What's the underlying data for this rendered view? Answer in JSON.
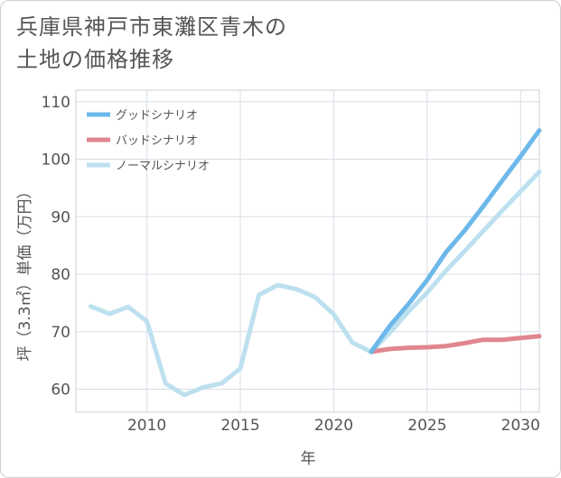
{
  "title": "兵庫県神戸市東灘区青木の\n土地の価格推移",
  "chart_data": {
    "type": "line",
    "xlabel": "年",
    "ylabel": "坪（3.3㎡）単価（万円）",
    "xlim": [
      2006.2,
      2031
    ],
    "ylim": [
      56,
      112
    ],
    "x_ticks": [
      2010,
      2015,
      2020,
      2025,
      2030
    ],
    "y_ticks": [
      60,
      70,
      80,
      90,
      100,
      110
    ],
    "grid": true,
    "legend_position": "top-left",
    "series": [
      {
        "name": "グッドシナリオ",
        "color": "#6db8ea",
        "x": [
          2022,
          2023,
          2024,
          2025,
          2026,
          2027,
          2028,
          2029,
          2030,
          2031
        ],
        "y": [
          66.5,
          71.0,
          74.8,
          79.0,
          83.8,
          87.6,
          91.8,
          96.2,
          100.5,
          105.0
        ]
      },
      {
        "name": "バッドシナリオ",
        "color": "#e0868f",
        "x": [
          2022,
          2023,
          2024,
          2025,
          2026,
          2027,
          2028,
          2029,
          2030,
          2031
        ],
        "y": [
          66.5,
          67.0,
          67.2,
          67.3,
          67.5,
          68.0,
          68.6,
          68.6,
          68.9,
          69.2
        ]
      },
      {
        "name": "ノーマルシナリオ",
        "color": "#bde0ef",
        "x": [
          2007,
          2008,
          2009,
          2010,
          2011,
          2012,
          2013,
          2014,
          2015,
          2016,
          2017,
          2018,
          2019,
          2020,
          2021,
          2022,
          2023,
          2024,
          2025,
          2026,
          2027,
          2028,
          2029,
          2030,
          2031
        ],
        "y": [
          74.4,
          73.1,
          74.3,
          71.8,
          61.0,
          59.0,
          60.3,
          61.0,
          63.6,
          76.4,
          78.1,
          77.4,
          76.0,
          73.0,
          68.1,
          66.5,
          69.8,
          73.5,
          76.8,
          80.6,
          84.0,
          87.5,
          91.0,
          94.4,
          97.8
        ]
      }
    ]
  }
}
